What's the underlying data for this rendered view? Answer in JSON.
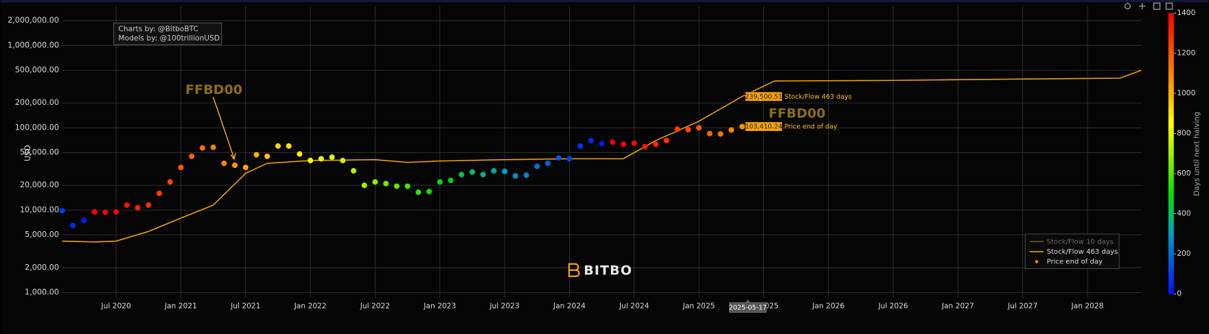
{
  "chart_data": {
    "type": "scatter",
    "y_label": "USD",
    "log_y": true,
    "grid": true,
    "legend": "lower right",
    "credits": [
      "Charts by: @BitboBTC",
      "Models by: @100trillionUSD"
    ],
    "watermark": "BITBO",
    "annotations": [
      {
        "text": "FFBD00"
      },
      {
        "text": "FFBD00"
      }
    ],
    "tooltip_date": "2025-05-17",
    "xlim": [
      "2020-02",
      "2028-06"
    ],
    "xticks": [
      {
        "value": "2020-07",
        "label": "Jul 2020"
      },
      {
        "value": "2021-01",
        "label": "Jan 2021"
      },
      {
        "value": "2021-07",
        "label": "Jul 2021"
      },
      {
        "value": "2022-01",
        "label": "Jan 2022"
      },
      {
        "value": "2022-07",
        "label": "Jul 2022"
      },
      {
        "value": "2023-01",
        "label": "Jan 2023"
      },
      {
        "value": "2023-07",
        "label": "Jul 2023"
      },
      {
        "value": "2024-01",
        "label": "Jan 2024"
      },
      {
        "value": "2024-07",
        "label": "Jul 2024"
      },
      {
        "value": "2025-01",
        "label": "Jan 2025"
      },
      {
        "value": "2025-07",
        "label": "Jul 2025"
      },
      {
        "value": "2026-01",
        "label": "Jan 2026"
      },
      {
        "value": "2026-07",
        "label": "Jul 2026"
      },
      {
        "value": "2027-01",
        "label": "Jan 2027"
      },
      {
        "value": "2027-07",
        "label": "Jul 2027"
      },
      {
        "value": "2028-01",
        "label": "Jan 2028"
      }
    ],
    "ylim": [
      860,
      3000000
    ],
    "yticks": [
      {
        "value": 1000,
        "label": "1,000.00"
      },
      {
        "value": 2000,
        "label": "2,000.00"
      },
      {
        "value": 5000,
        "label": "5,000.00"
      },
      {
        "value": 10000,
        "label": "10,000.00"
      },
      {
        "value": 20000,
        "label": "20,000.00"
      },
      {
        "value": 50000,
        "label": "50,000.00"
      },
      {
        "value": 100000,
        "label": "100,000.00"
      },
      {
        "value": 200000,
        "label": "200,000.00"
      },
      {
        "value": 500000,
        "label": "500,000.00"
      },
      {
        "value": 1000000,
        "label": "1,000,000.00"
      },
      {
        "value": 2000000,
        "label": "2,000,000.00"
      }
    ],
    "colorbar": {
      "label": "Days until next halving",
      "lim": [
        0,
        1400
      ],
      "ticks": [
        0,
        200,
        400,
        600,
        800,
        1000,
        1200,
        1400
      ],
      "colorscale": [
        [
          0,
          "#0010ff"
        ],
        [
          300,
          "#00a0c0"
        ],
        [
          500,
          "#00e000"
        ],
        [
          700,
          "#a0f000"
        ],
        [
          850,
          "#ffff00"
        ],
        [
          1050,
          "#ff9900"
        ],
        [
          1400,
          "#ff0000"
        ]
      ]
    },
    "series": [
      {
        "name": "Stock/Flow 10 days",
        "type": "line",
        "color": "#6b5a20",
        "hidden": true
      },
      {
        "name": "Stock/Flow 463 days",
        "type": "line",
        "color": "#f5a300",
        "x": [
          "2020-02",
          "2020-05",
          "2020-07",
          "2020-10",
          "2021-01",
          "2021-04",
          "2021-07",
          "2021-09",
          "2022-01",
          "2022-07",
          "2022-10",
          "2023-01",
          "2023-07",
          "2024-01",
          "2024-06",
          "2024-09",
          "2025-01",
          "2025-05",
          "2025-08",
          "2026-06",
          "2027-06",
          "2028-04",
          "2028-06"
        ],
        "values": [
          4200,
          4100,
          4200,
          5500,
          8000,
          11500,
          28000,
          37000,
          40000,
          41000,
          38000,
          39500,
          41000,
          42000,
          42000,
          70000,
          120000,
          239500.51,
          370000,
          375000,
          390000,
          400000,
          500000
        ],
        "value_labels": [
          null,
          null,
          null,
          null,
          null,
          null,
          null,
          null,
          null,
          null,
          null,
          null,
          null,
          null,
          null,
          null,
          null,
          "239,500.51",
          null,
          null,
          null,
          null,
          null
        ]
      },
      {
        "name": "Price end of day",
        "type": "scatter",
        "color": "#ff8c00",
        "x": [
          "2020-02",
          "2020-03",
          "2020-04",
          "2020-05",
          "2020-06",
          "2020-07",
          "2020-08",
          "2020-09",
          "2020-10",
          "2020-11",
          "2020-12",
          "2021-01",
          "2021-02",
          "2021-03",
          "2021-04",
          "2021-05",
          "2021-06",
          "2021-07",
          "2021-08",
          "2021-09",
          "2021-10",
          "2021-11",
          "2021-12",
          "2022-01",
          "2022-02",
          "2022-03",
          "2022-04",
          "2022-05",
          "2022-06",
          "2022-07",
          "2022-08",
          "2022-09",
          "2022-10",
          "2022-11",
          "2022-12",
          "2023-01",
          "2023-02",
          "2023-03",
          "2023-04",
          "2023-05",
          "2023-06",
          "2023-07",
          "2023-08",
          "2023-09",
          "2023-10",
          "2023-11",
          "2023-12",
          "2024-01",
          "2024-02",
          "2024-03",
          "2024-04",
          "2024-05",
          "2024-06",
          "2024-07",
          "2024-08",
          "2024-09",
          "2024-10",
          "2024-11",
          "2024-12",
          "2025-01",
          "2025-02",
          "2025-03",
          "2025-04",
          "2025-05"
        ],
        "values": [
          9800,
          6500,
          7500,
          9500,
          9400,
          9500,
          11500,
          10700,
          11500,
          16000,
          22000,
          33000,
          45000,
          57000,
          58000,
          37000,
          35000,
          33000,
          47000,
          45000,
          60000,
          60000,
          48000,
          40000,
          42000,
          44000,
          40000,
          30000,
          20000,
          22000,
          21000,
          19500,
          19500,
          16500,
          16800,
          22000,
          23000,
          27000,
          29000,
          27000,
          30000,
          29500,
          26000,
          26500,
          34000,
          37000,
          43000,
          42000,
          60000,
          70000,
          64000,
          67000,
          63000,
          65000,
          59000,
          63000,
          70000,
          96000,
          95000,
          100000,
          85000,
          84000,
          94000,
          103410.24
        ],
        "color_values": [
          90,
          60,
          30,
          1450,
          1420,
          1390,
          1360,
          1330,
          1300,
          1270,
          1240,
          1200,
          1180,
          1150,
          1120,
          1090,
          1060,
          1030,
          1000,
          970,
          940,
          910,
          880,
          850,
          820,
          790,
          760,
          730,
          700,
          670,
          640,
          610,
          580,
          550,
          520,
          490,
          460,
          420,
          390,
          360,
          330,
          300,
          270,
          240,
          210,
          180,
          150,
          110,
          80,
          50,
          15,
          1440,
          1410,
          1380,
          1350,
          1320,
          1290,
          1260,
          1230,
          1200,
          1170,
          1140,
          1110,
          1080
        ],
        "value_labels": [
          null,
          null,
          null,
          null,
          null,
          null,
          null,
          null,
          null,
          null,
          null,
          null,
          null,
          null,
          null,
          null,
          null,
          null,
          null,
          null,
          null,
          null,
          null,
          null,
          null,
          null,
          null,
          null,
          null,
          null,
          null,
          null,
          null,
          null,
          null,
          null,
          null,
          null,
          null,
          null,
          null,
          null,
          null,
          null,
          null,
          null,
          null,
          null,
          null,
          null,
          null,
          null,
          null,
          null,
          null,
          null,
          null,
          null,
          null,
          null,
          null,
          null,
          null,
          "103,410.24"
        ]
      }
    ]
  }
}
